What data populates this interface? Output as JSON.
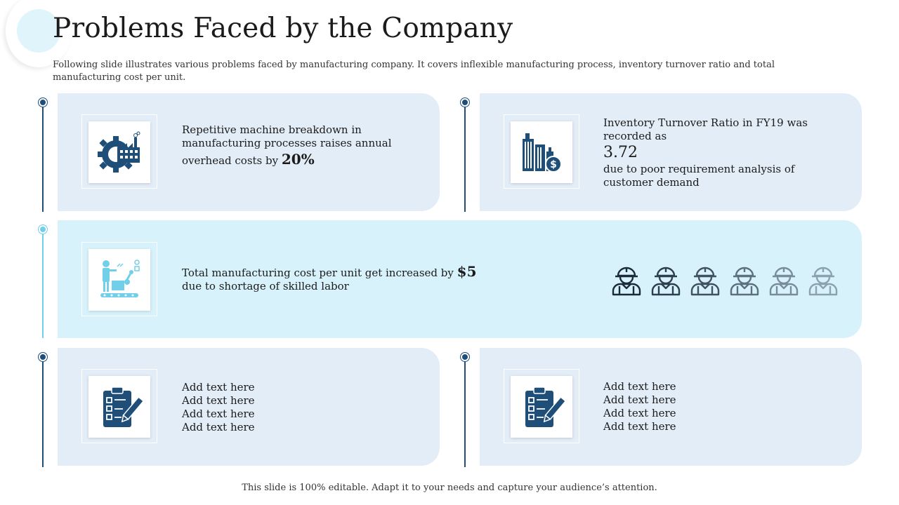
{
  "title": "Problems Faced by the Company",
  "subtitle": "Following slide illustrates various problems faced by manufacturing company. It covers inflexible manufacturing process, inventory turnover ratio and total manufacturing cost per unit.",
  "colors": {
    "dark_blue": "#1f4e79",
    "light_blue": "#72cfe9",
    "card_bg": "#e3edf7",
    "highlight_bg": "#d8f2fb"
  },
  "cards": [
    {
      "icon": "factory-gear-icon",
      "lines": [
        "Repetitive machine breakdown in",
        "manufacturing processes raises annual"
      ],
      "pre": "overhead costs by",
      "value": "20%"
    },
    {
      "icon": "buildings-dollar-icon",
      "lines": [
        "Inventory Turnover Ratio in FY19 was",
        "recorded as"
      ],
      "value": "3.72",
      "post_lines": [
        "due to poor requirement analysis of",
        "customer demand"
      ]
    },
    {
      "icon": "worker-conveyor-icon",
      "pre": "Total manufacturing cost per unit get increased by",
      "value": "$5",
      "post": "due to shortage of skilled labor",
      "worker_icon": "worker-helmet-icon",
      "worker_opacities": [
        1,
        0.9,
        0.8,
        0.65,
        0.5,
        0.4
      ]
    },
    {
      "icon": "clipboard-pen-icon",
      "lines": [
        "Add text here",
        "Add text here",
        "Add text here",
        "Add text here"
      ]
    },
    {
      "icon": "clipboard-pen-icon",
      "lines": [
        "Add text here",
        "Add text here",
        "Add text here",
        "Add text here"
      ]
    }
  ],
  "footer": "This slide is 100% editable. Adapt it to your needs and capture your audience’s attention."
}
